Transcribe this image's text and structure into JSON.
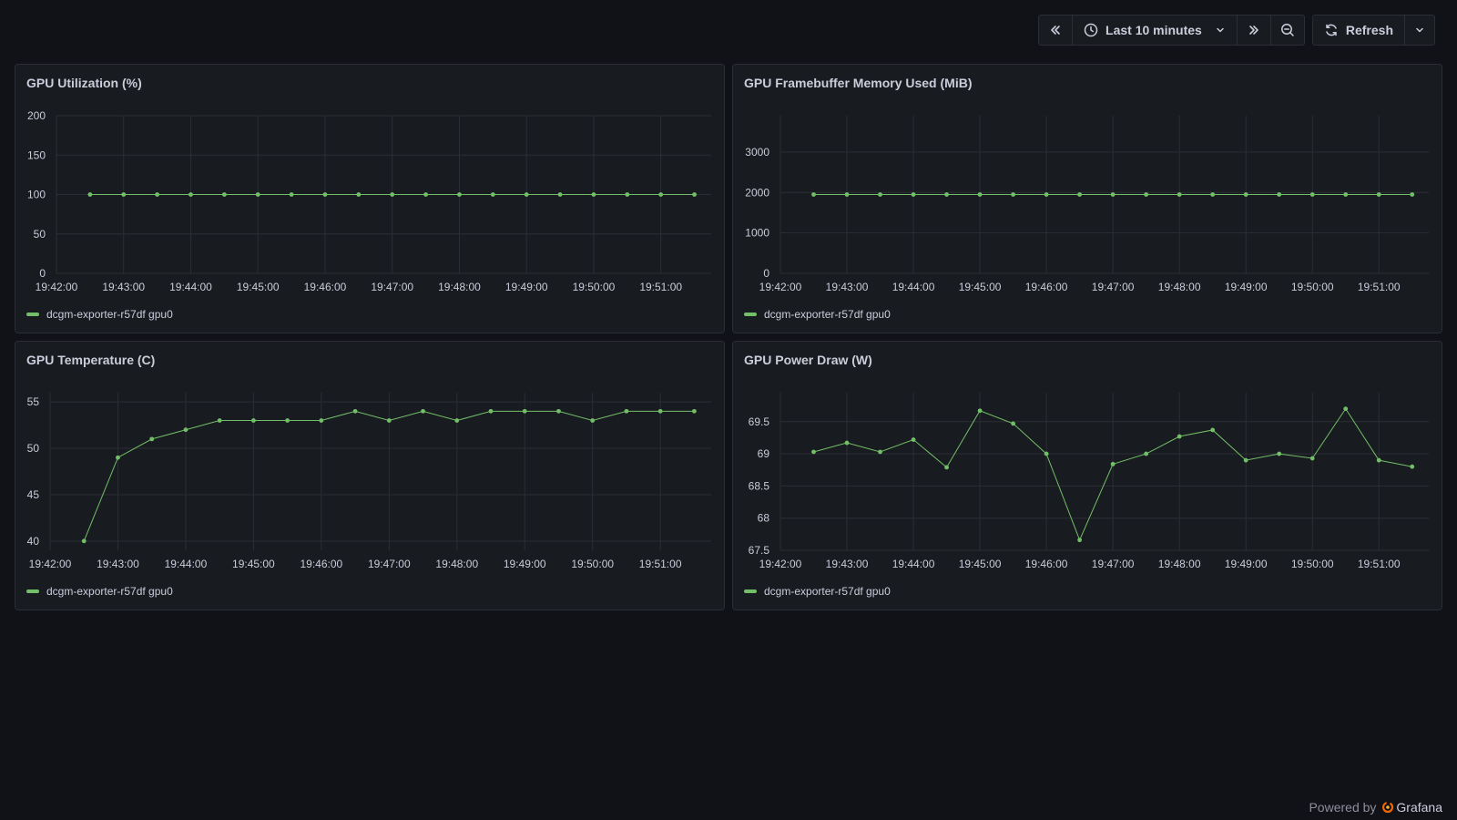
{
  "toolbar": {
    "time_range_label": "Last 10 minutes",
    "refresh_label": "Refresh",
    "icons": [
      "shift-back-icon",
      "clock-icon",
      "chevron-down-icon",
      "shift-forward-icon",
      "zoom-out-icon",
      "sync-icon",
      "chevron-down-icon"
    ]
  },
  "colors": {
    "background": "#111217",
    "panel": "#181b1f",
    "series": "#73bf69",
    "grid": "#2c2e36",
    "text": "#ccccdc"
  },
  "panels": [
    {
      "title": "GPU Utilization (%)",
      "legend": "dcgm-exporter-r57df gpu0"
    },
    {
      "title": "GPU Framebuffer Memory Used (MiB)",
      "legend": "dcgm-exporter-r57df gpu0"
    },
    {
      "title": "GPU Temperature (C)",
      "legend": "dcgm-exporter-r57df gpu0"
    },
    {
      "title": "GPU Power Draw (W)",
      "legend": "dcgm-exporter-r57df gpu0"
    }
  ],
  "footer": {
    "powered_by": "Powered by",
    "brand": "Grafana"
  },
  "chart_data": [
    {
      "type": "line",
      "title": "GPU Utilization (%)",
      "x": [
        "19:42:30",
        "19:43:00",
        "19:43:30",
        "19:44:00",
        "19:44:30",
        "19:45:00",
        "19:45:30",
        "19:46:00",
        "19:46:30",
        "19:47:00",
        "19:47:30",
        "19:48:00",
        "19:48:30",
        "19:49:00",
        "19:49:30",
        "19:50:00",
        "19:50:30",
        "19:51:00",
        "19:51:30"
      ],
      "xticks": [
        "19:42:00",
        "19:43:00",
        "19:44:00",
        "19:45:00",
        "19:46:00",
        "19:47:00",
        "19:48:00",
        "19:49:00",
        "19:50:00",
        "19:51:00"
      ],
      "xlim": [
        "19:42:00",
        "19:51:45"
      ],
      "series": [
        {
          "name": "dcgm-exporter-r57df gpu0",
          "values": [
            100,
            100,
            100,
            100,
            100,
            100,
            100,
            100,
            100,
            100,
            100,
            100,
            100,
            100,
            100,
            100,
            100,
            100,
            100
          ]
        }
      ],
      "yticks": [
        "0",
        "50",
        "100",
        "150",
        "200"
      ],
      "ylim": [
        0,
        200
      ],
      "grid": true,
      "legend": "bottom-left"
    },
    {
      "type": "line",
      "title": "GPU Framebuffer Memory Used (MiB)",
      "x": [
        "19:42:30",
        "19:43:00",
        "19:43:30",
        "19:44:00",
        "19:44:30",
        "19:45:00",
        "19:45:30",
        "19:46:00",
        "19:46:30",
        "19:47:00",
        "19:47:30",
        "19:48:00",
        "19:48:30",
        "19:49:00",
        "19:49:30",
        "19:50:00",
        "19:50:30",
        "19:51:00",
        "19:51:30"
      ],
      "xticks": [
        "19:42:00",
        "19:43:00",
        "19:44:00",
        "19:45:00",
        "19:46:00",
        "19:47:00",
        "19:48:00",
        "19:49:00",
        "19:50:00",
        "19:51:00"
      ],
      "xlim": [
        "19:42:00",
        "19:51:45"
      ],
      "series": [
        {
          "name": "dcgm-exporter-r57df gpu0",
          "values": [
            1950,
            1950,
            1950,
            1950,
            1950,
            1950,
            1950,
            1950,
            1950,
            1950,
            1950,
            1950,
            1950,
            1950,
            1950,
            1950,
            1950,
            1950,
            1950
          ]
        }
      ],
      "yticks": [
        "0",
        "1000",
        "2000",
        "3000"
      ],
      "ylim": [
        0,
        3900
      ],
      "grid": true,
      "legend": "bottom-left"
    },
    {
      "type": "line",
      "title": "GPU Temperature (C)",
      "x": [
        "19:42:30",
        "19:43:00",
        "19:43:30",
        "19:44:00",
        "19:44:30",
        "19:45:00",
        "19:45:30",
        "19:46:00",
        "19:46:30",
        "19:47:00",
        "19:47:30",
        "19:48:00",
        "19:48:30",
        "19:49:00",
        "19:49:30",
        "19:50:00",
        "19:50:30",
        "19:51:00",
        "19:51:30"
      ],
      "xticks": [
        "19:42:00",
        "19:43:00",
        "19:44:00",
        "19:45:00",
        "19:46:00",
        "19:47:00",
        "19:48:00",
        "19:49:00",
        "19:50:00",
        "19:51:00"
      ],
      "xlim": [
        "19:42:00",
        "19:51:45"
      ],
      "series": [
        {
          "name": "dcgm-exporter-r57df gpu0",
          "values": [
            40,
            49,
            51,
            52,
            53,
            53,
            53,
            53,
            54,
            53,
            54,
            53,
            54,
            54,
            54,
            53,
            54,
            54,
            54
          ]
        }
      ],
      "yticks": [
        "40",
        "45",
        "50",
        "55"
      ],
      "ylim": [
        39,
        56
      ],
      "grid": true,
      "legend": "bottom-left"
    },
    {
      "type": "line",
      "title": "GPU Power Draw (W)",
      "x": [
        "19:42:30",
        "19:43:00",
        "19:43:30",
        "19:44:00",
        "19:44:30",
        "19:45:00",
        "19:45:30",
        "19:46:00",
        "19:46:30",
        "19:47:00",
        "19:47:30",
        "19:48:00",
        "19:48:30",
        "19:49:00",
        "19:49:30",
        "19:50:00",
        "19:50:30",
        "19:51:00",
        "19:51:30"
      ],
      "xticks": [
        "19:42:00",
        "19:43:00",
        "19:44:00",
        "19:45:00",
        "19:46:00",
        "19:47:00",
        "19:48:00",
        "19:49:00",
        "19:50:00",
        "19:51:00"
      ],
      "xlim": [
        "19:42:00",
        "19:51:45"
      ],
      "series": [
        {
          "name": "dcgm-exporter-r57df gpu0",
          "values": [
            69.03,
            69.17,
            69.03,
            69.22,
            68.79,
            69.67,
            69.47,
            69.0,
            67.66,
            68.84,
            69.0,
            69.27,
            69.37,
            68.9,
            69.0,
            68.93,
            69.7,
            68.9,
            68.8
          ]
        }
      ],
      "yticks": [
        "67.5",
        "68",
        "68.5",
        "69",
        "69.5"
      ],
      "ylim": [
        67.5,
        69.95
      ],
      "grid": true,
      "legend": "bottom-left"
    }
  ]
}
